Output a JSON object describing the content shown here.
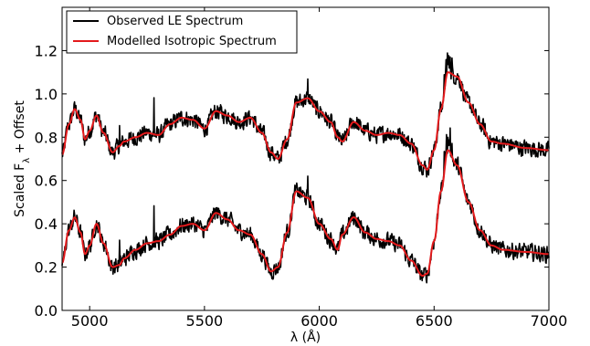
{
  "chart_data": {
    "type": "line",
    "xlabel": "λ (Å)",
    "ylabel": "Scaled F_λ + Offset",
    "xlim": [
      4880,
      7000
    ],
    "ylim": [
      0.0,
      1.4
    ],
    "x_ticks": [
      5000,
      5500,
      6000,
      6500,
      7000
    ],
    "y_ticks": [
      0.0,
      0.2,
      0.4,
      0.6,
      0.8,
      1.0,
      1.2
    ],
    "x_tick_labels": [
      "5000",
      "5500",
      "6000",
      "6500",
      "7000"
    ],
    "y_tick_labels": [
      "0.0",
      "0.2",
      "0.4",
      "0.6",
      "0.8",
      "1.0",
      "1.2"
    ],
    "grid": false,
    "legend_position": "top-left",
    "legend_entries": [
      "Observed LE Spectrum",
      "Modelled Isotropic Spectrum"
    ],
    "colors": {
      "observed": "#000000",
      "model": "#e31a1c"
    },
    "series": [
      {
        "name": "Modelled Isotropic Spectrum",
        "color": "#e31a1c",
        "x": [
          4880,
          4910,
          4935,
          4960,
          4980,
          5000,
          5030,
          5060,
          5100,
          5130,
          5150,
          5200,
          5250,
          5300,
          5350,
          5400,
          5450,
          5500,
          5550,
          5600,
          5650,
          5700,
          5750,
          5790,
          5820,
          5860,
          5900,
          5950,
          6000,
          6050,
          6080,
          6100,
          6150,
          6200,
          6250,
          6300,
          6350,
          6400,
          6450,
          6470,
          6500,
          6530,
          6560,
          6600,
          6650,
          6700,
          6750,
          6800,
          6900,
          7000
        ],
        "y": [
          0.72,
          0.86,
          0.93,
          0.88,
          0.79,
          0.83,
          0.9,
          0.82,
          0.73,
          0.76,
          0.78,
          0.8,
          0.82,
          0.81,
          0.86,
          0.89,
          0.88,
          0.84,
          0.92,
          0.9,
          0.87,
          0.89,
          0.82,
          0.73,
          0.7,
          0.79,
          0.96,
          0.98,
          0.92,
          0.87,
          0.8,
          0.78,
          0.87,
          0.83,
          0.81,
          0.82,
          0.81,
          0.77,
          0.67,
          0.65,
          0.74,
          0.93,
          1.1,
          1.08,
          0.96,
          0.86,
          0.78,
          0.77,
          0.75,
          0.74
        ]
      },
      {
        "name": "Modelled Isotropic Spectrum",
        "color": "#e31a1c",
        "x": [
          4880,
          4910,
          4935,
          4960,
          4980,
          5000,
          5030,
          5060,
          5100,
          5130,
          5150,
          5200,
          5250,
          5300,
          5350,
          5400,
          5450,
          5500,
          5550,
          5600,
          5650,
          5700,
          5750,
          5790,
          5820,
          5860,
          5900,
          5950,
          6000,
          6050,
          6080,
          6100,
          6150,
          6200,
          6250,
          6300,
          6350,
          6400,
          6450,
          6470,
          6500,
          6530,
          6560,
          6600,
          6650,
          6700,
          6750,
          6800,
          6900,
          7000
        ],
        "y": [
          0.22,
          0.37,
          0.43,
          0.36,
          0.26,
          0.3,
          0.4,
          0.31,
          0.2,
          0.21,
          0.24,
          0.28,
          0.31,
          0.32,
          0.35,
          0.39,
          0.4,
          0.37,
          0.45,
          0.42,
          0.37,
          0.35,
          0.26,
          0.18,
          0.2,
          0.36,
          0.55,
          0.52,
          0.4,
          0.33,
          0.28,
          0.35,
          0.43,
          0.36,
          0.33,
          0.32,
          0.3,
          0.23,
          0.16,
          0.17,
          0.32,
          0.55,
          0.74,
          0.67,
          0.5,
          0.37,
          0.3,
          0.28,
          0.27,
          0.26
        ]
      }
    ],
    "observed_noise_amplitude": 0.035
  }
}
